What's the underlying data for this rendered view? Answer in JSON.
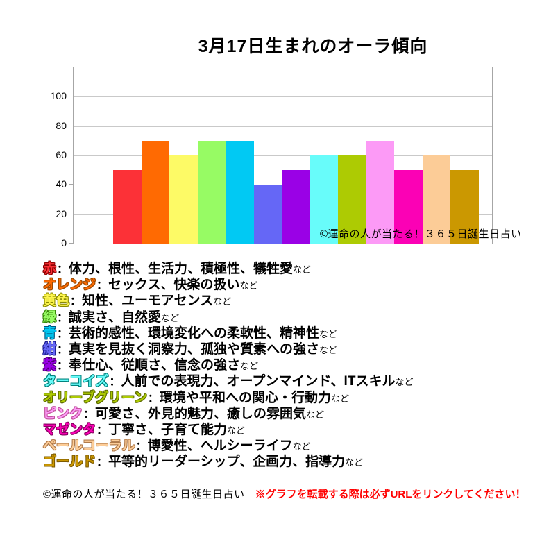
{
  "title": "3月17日生まれのオーラ傾向",
  "watermark": "©運命の人が当たる！３６５日誕生日占い",
  "footer": {
    "copyright": "©運命の人が当たる！３６５日誕生日占い",
    "notice": "※グラフを転載する際は必ずURLをリンクしてください！",
    "notice_color": "#ff0000"
  },
  "chart_data": {
    "type": "bar",
    "title": "3月17日生まれのオーラ傾向",
    "categories": [
      "赤",
      "オレンジ",
      "黄色",
      "緑",
      "青",
      "紺",
      "紫",
      "ターコイズ",
      "オリーブグリーン",
      "ピンク",
      "マゼンタ",
      "ペールコーラル",
      "ゴールド"
    ],
    "values": [
      50,
      70,
      60,
      70,
      70,
      40,
      50,
      60,
      60,
      70,
      50,
      60,
      50
    ],
    "colors": [
      "#fc3137",
      "#ff6a02",
      "#fdfa66",
      "#97fb64",
      "#01c9f3",
      "#6567f6",
      "#9a01e6",
      "#68fcfa",
      "#adcb03",
      "#fc9af6",
      "#fb01b5",
      "#fccc97",
      "#cb9801"
    ],
    "ylim": [
      0,
      120
    ],
    "yticks": [
      0,
      20,
      40,
      60,
      80,
      100
    ],
    "grid": true,
    "gridline_color": "#c9c9c9",
    "xlabel": "",
    "ylabel": "",
    "legend_position": "below"
  },
  "legend": {
    "separator": "：",
    "suffix": "など",
    "items": [
      {
        "term": "赤",
        "color": "#fc3137",
        "outline": "#8b0000",
        "desc": "体力、根性、生活力、積極性、犠牲愛"
      },
      {
        "term": "オレンジ",
        "color": "#ff6a02",
        "outline": "#9c4a00",
        "desc": "セックス、快楽の扱い"
      },
      {
        "term": "黄色",
        "color": "#fdf54d",
        "outline": "#8a8a00",
        "desc": "知性、ユーモアセンス"
      },
      {
        "term": "緑",
        "color": "#97fb64",
        "outline": "#2f7d00",
        "desc": "誠実さ、自然愛"
      },
      {
        "term": "青",
        "color": "#01c9f3",
        "outline": "#00547d",
        "desc": "芸術的感性、環境変化への柔軟性、精神性"
      },
      {
        "term": "紺",
        "color": "#6567f6",
        "outline": "#1c1c8f",
        "desc": "真実を見抜く洞察力、孤独や質素への強さ"
      },
      {
        "term": "紫",
        "color": "#9a01e6",
        "outline": "#4e0073",
        "desc": "奉仕心、従順さ、信念の強さ"
      },
      {
        "term": "ターコイズ",
        "color": "#68fcfa",
        "outline": "#00827d",
        "desc": "人前での表現力、オープンマインド、ITスキル"
      },
      {
        "term": "オリーブグリーン",
        "color": "#adcb03",
        "outline": "#5f6e00",
        "desc": "環境や平和への関心・行動力"
      },
      {
        "term": "ピンク",
        "color": "#fc9af6",
        "outline": "#c2519e",
        "desc": "可愛さ、外見的魅力、癒しの雰囲気"
      },
      {
        "term": "マゼンタ",
        "color": "#fb01b5",
        "outline": "#870061",
        "desc": "丁寧さ、子育て能力"
      },
      {
        "term": "ペールコーラル",
        "color": "#fccc97",
        "outline": "#b07a4a",
        "desc": "博愛性、ヘルシーライフ"
      },
      {
        "term": "ゴールド",
        "color": "#cb9801",
        "outline": "#7d5a00",
        "desc": "平等的リーダーシップ、企画力、指導力"
      }
    ]
  }
}
